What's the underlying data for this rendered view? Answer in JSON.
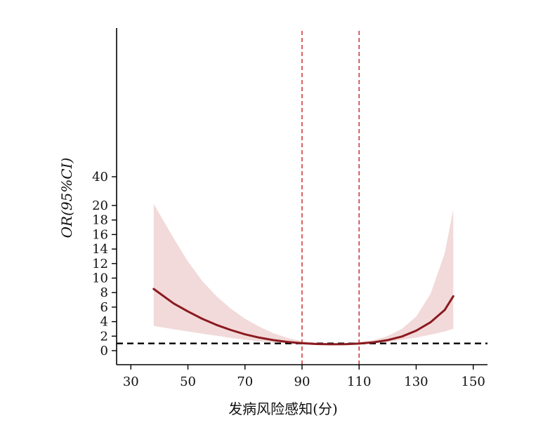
{
  "chart_data": {
    "type": "line",
    "title": "",
    "xlabel": "发病风险感知(分)",
    "ylabel": "OR(95%CI)",
    "xlim": [
      25,
      155
    ],
    "x_ticks": [
      "30",
      "50",
      "70",
      "90",
      "110",
      "130",
      "150"
    ],
    "y_ticks": [
      "0",
      "2",
      "4",
      "6",
      "8",
      "10",
      "12",
      "14",
      "16",
      "18",
      "20",
      "40"
    ],
    "y_axis_break": "y-axis jumps from 20 to 40 at the top tick",
    "reference_lines": {
      "horizontal_or": 1,
      "vertical_x": [
        90,
        110
      ]
    },
    "series": [
      {
        "x": [
          38,
          45,
          50,
          55,
          60,
          65,
          70,
          75,
          80,
          85,
          90,
          95,
          100,
          105,
          110,
          115,
          120,
          125,
          130,
          135,
          140,
          143
        ],
        "values": [
          8.5,
          6.5,
          5.4,
          4.4,
          3.55,
          2.85,
          2.25,
          1.8,
          1.45,
          1.2,
          1.02,
          0.92,
          0.88,
          0.9,
          0.98,
          1.15,
          1.45,
          1.95,
          2.75,
          3.9,
          5.6,
          7.5
        ],
        "ci_lower": [
          3.4,
          2.95,
          2.65,
          2.35,
          2.05,
          1.75,
          1.5,
          1.3,
          1.12,
          0.98,
          0.88,
          0.8,
          0.78,
          0.8,
          0.88,
          1.0,
          1.2,
          1.5,
          1.8,
          2.2,
          2.65,
          3.0
        ],
        "ci_upper": [
          22.2,
          15.5,
          12.3,
          9.6,
          7.5,
          5.8,
          4.4,
          3.3,
          2.4,
          1.75,
          1.3,
          1.1,
          1.02,
          1.05,
          1.15,
          1.45,
          2.0,
          3.0,
          4.7,
          7.8,
          13.4,
          19.5
        ]
      }
    ],
    "colors": {
      "curve": "#8b1a1f",
      "ci_band": "#f2dada",
      "vertical_lines": "#d03b3b",
      "reference_line": "#000000",
      "axis": "#000000"
    }
  }
}
